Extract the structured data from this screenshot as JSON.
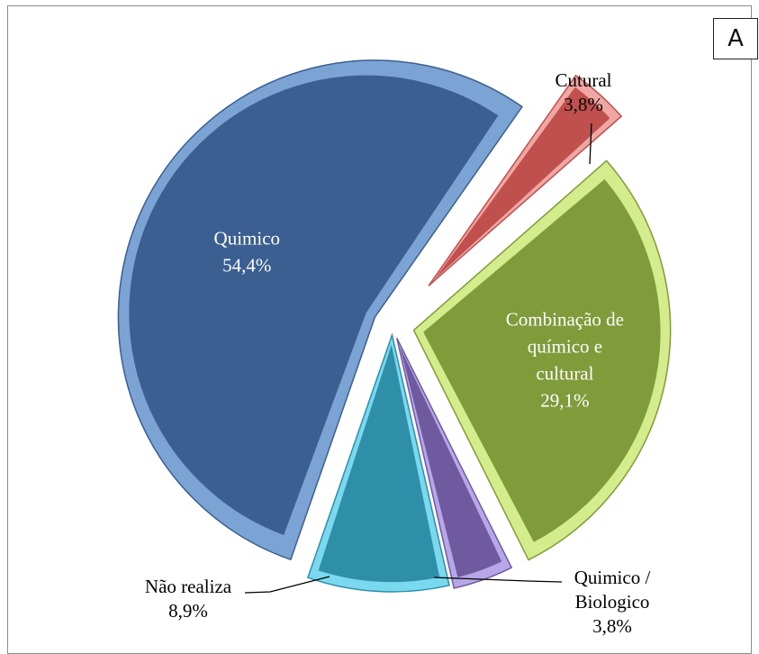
{
  "panel_letter": "A",
  "chart_data": {
    "type": "pie",
    "exploded": true,
    "style": "3d-bevel",
    "start_angle_deg": 55,
    "direction": "counterclockwise",
    "slices": [
      {
        "label": "Quimico",
        "value": 54.4,
        "value_text": "54,4%",
        "color": "#3a5f90",
        "rim": "#7ba3d4",
        "label_inside": true,
        "label_color": "#ffffff"
      },
      {
        "label": "Não realiza",
        "value": 8.9,
        "value_text": "8,9%",
        "color": "#2f8ea8",
        "rim": "#7ad9ef",
        "label_inside": false,
        "label_color": "#000000"
      },
      {
        "label": "Quimico / Biologico",
        "value": 3.8,
        "value_text": "3,8%",
        "color": "#6f5aa0",
        "rim": "#b7a6e8",
        "label_inside": false,
        "label_color": "#000000"
      },
      {
        "label": "Combinação de químico e cultural",
        "value": 29.1,
        "value_text": "29,1%",
        "color": "#7f9b3a",
        "rim": "#d4ec8c",
        "label_inside": true,
        "label_color": "#ffffff"
      },
      {
        "label": "Cutural",
        "value": 3.8,
        "value_text": "3,8%",
        "color": "#c0504d",
        "rim": "#f0a7a3",
        "label_inside": false,
        "label_color": "#000000"
      }
    ]
  }
}
